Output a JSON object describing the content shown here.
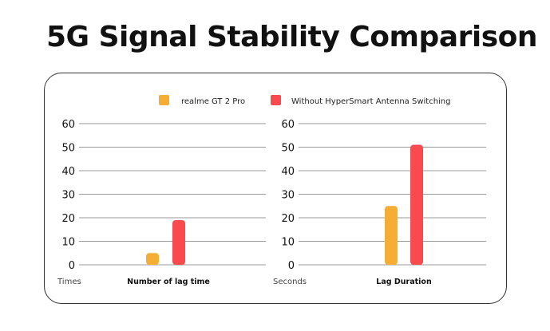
{
  "title": "5G Signal Stability Comparison",
  "colors": {
    "realme": "#F5AE33",
    "without": "#F94A4E"
  },
  "chart_data": {
    "title": "5G Signal Stability Comparison",
    "legend": {
      "placement": "top-center",
      "entries": [
        "realme GT 2 Pro",
        "Without HyperSmart Antenna Switching"
      ]
    },
    "charts": [
      {
        "type": "bar",
        "xlabel": "Number of lag time",
        "unit_label": "Times",
        "ylim": [
          0,
          60
        ],
        "yticks": [
          "0",
          "10",
          "20",
          "30",
          "40",
          "50",
          "60"
        ],
        "grid": true,
        "series": [
          {
            "name": "realme GT 2 Pro",
            "values": [
              5
            ]
          },
          {
            "name": "Without HyperSmart Antenna Switching",
            "values": [
              19
            ]
          }
        ]
      },
      {
        "type": "bar",
        "xlabel": "Lag Duration",
        "unit_label": "Seconds",
        "ylim": [
          0,
          60
        ],
        "yticks": [
          "0",
          "10",
          "20",
          "30",
          "40",
          "50",
          "60"
        ],
        "grid": true,
        "series": [
          {
            "name": "realme GT 2 Pro",
            "values": [
              25
            ]
          },
          {
            "name": "Without HyperSmart Antenna Switching",
            "values": [
              51
            ]
          }
        ]
      }
    ]
  }
}
